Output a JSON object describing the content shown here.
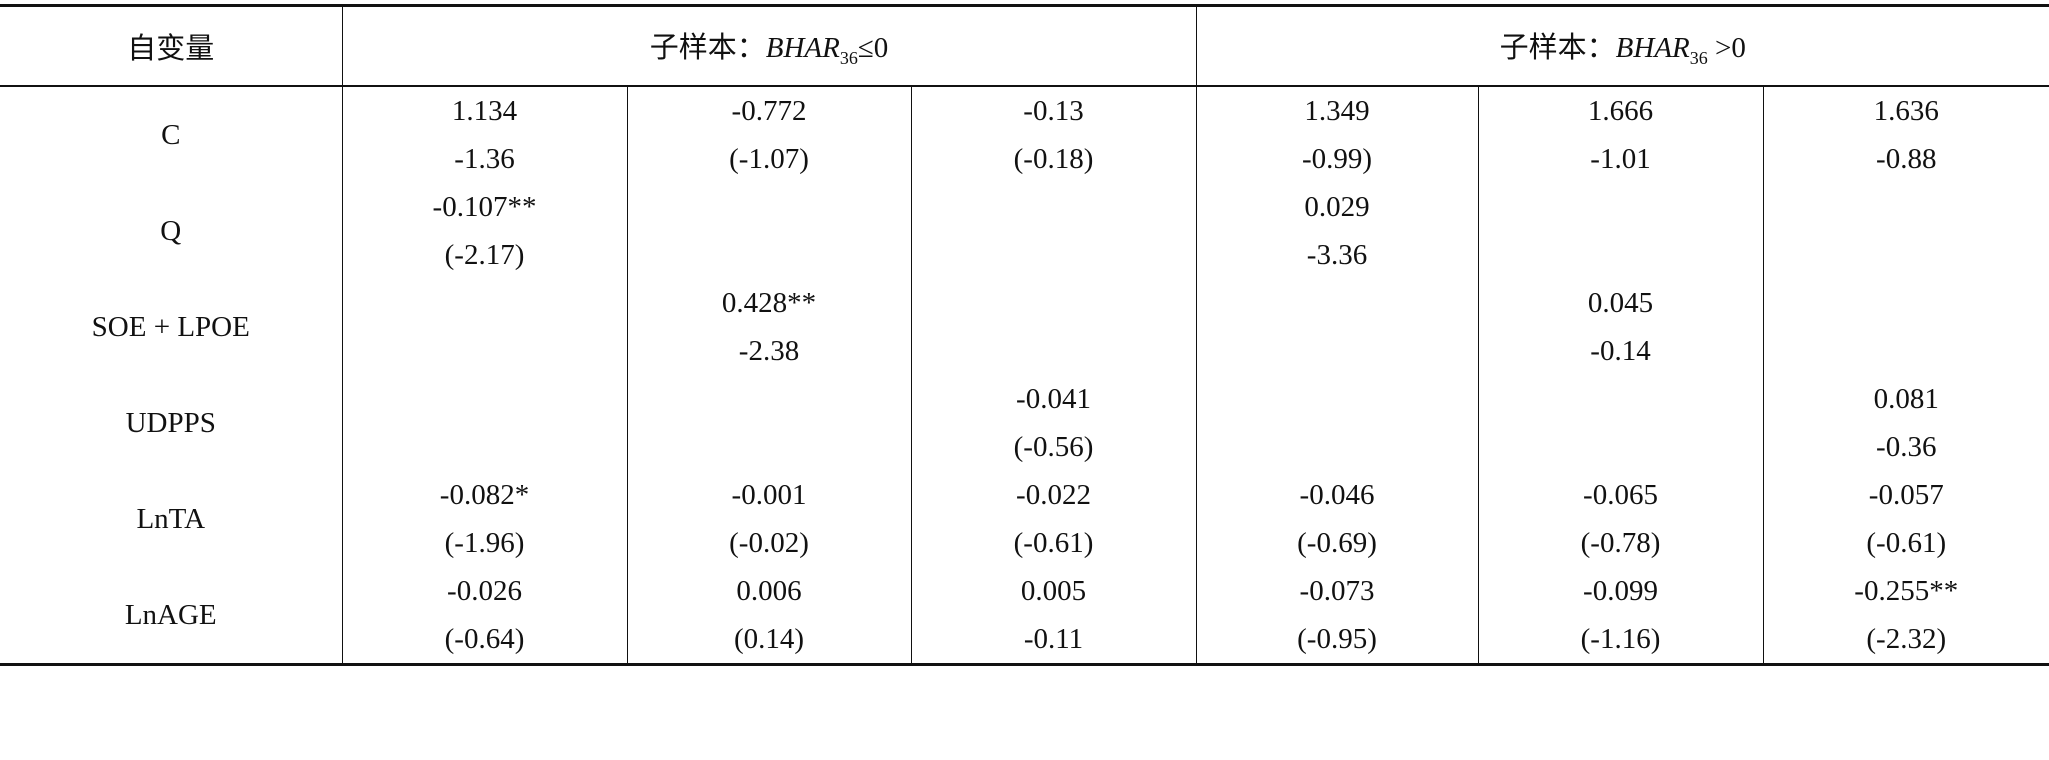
{
  "table": {
    "header": {
      "first": "自变量",
      "group1": {
        "prefix": "子样本：",
        "var": "BHAR",
        "sub": "36",
        "suffix": "≤0"
      },
      "group2": {
        "prefix": "子样本：",
        "var": "BHAR",
        "sub": "36",
        "suffix": " >0"
      }
    },
    "rows": [
      {
        "label": "C",
        "cells": [
          [
            "1.134",
            "-1.36"
          ],
          [
            "-0.772",
            "(-1.07)"
          ],
          [
            "-0.13",
            "(-0.18)"
          ],
          [
            "1.349",
            "-0.99)"
          ],
          [
            "1.666",
            "-1.01"
          ],
          [
            "1.636",
            "-0.88"
          ]
        ]
      },
      {
        "label": "Q",
        "cells": [
          [
            "-0.107**",
            "(-2.17)"
          ],
          null,
          null,
          [
            "0.029",
            "-3.36"
          ],
          null,
          null
        ]
      },
      {
        "label": "SOE + LPOE",
        "cells": [
          null,
          [
            "0.428**",
            "-2.38"
          ],
          null,
          null,
          [
            "0.045",
            "-0.14"
          ],
          null
        ]
      },
      {
        "label": "UDPPS",
        "cells": [
          null,
          null,
          [
            "-0.041",
            "(-0.56)"
          ],
          null,
          null,
          [
            "0.081",
            "-0.36"
          ]
        ]
      },
      {
        "label": "LnTA",
        "cells": [
          [
            "-0.082*",
            "(-1.96)"
          ],
          [
            "-0.001",
            "(-0.02)"
          ],
          [
            "-0.022",
            "(-0.61)"
          ],
          [
            "-0.046",
            "(-0.69)"
          ],
          [
            "-0.065",
            "(-0.78)"
          ],
          [
            "-0.057",
            "(-0.61)"
          ]
        ]
      },
      {
        "label": "LnAGE",
        "cells": [
          [
            "-0.026",
            "(-0.64)"
          ],
          [
            "0.006",
            "(0.14)"
          ],
          [
            "0.005",
            "-0.11"
          ],
          [
            "-0.073",
            "(-0.95)"
          ],
          [
            "-0.099",
            "(-1.16)"
          ],
          [
            "-0.255**",
            "(-2.32)"
          ]
        ]
      }
    ]
  }
}
